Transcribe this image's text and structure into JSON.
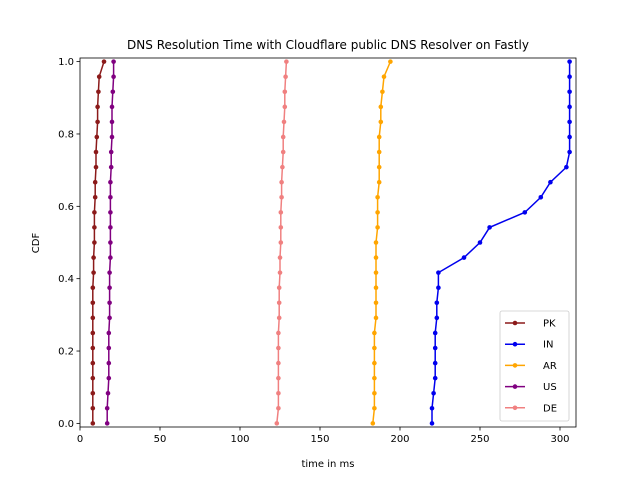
{
  "chart_data": {
    "type": "line",
    "title": "DNS Resolution Time with Cloudflare public DNS Resolver on Fastly",
    "xlabel": "time in ms",
    "ylabel": "CDF",
    "xlim": [
      0,
      310
    ],
    "ylim": [
      -0.01,
      1.01
    ],
    "xticks": [
      0,
      50,
      100,
      150,
      200,
      250,
      300
    ],
    "yticks": [
      0.0,
      0.2,
      0.4,
      0.6,
      0.8,
      1.0
    ],
    "grid": false,
    "legend_position": "bottom-right",
    "y": [
      0.0,
      0.0417,
      0.0833,
      0.125,
      0.1667,
      0.2083,
      0.25,
      0.2917,
      0.3333,
      0.375,
      0.4167,
      0.4583,
      0.5,
      0.5417,
      0.5833,
      0.625,
      0.6667,
      0.7083,
      0.75,
      0.7917,
      0.8333,
      0.875,
      0.9167,
      0.9583,
      1.0
    ],
    "series": [
      {
        "name": "PK",
        "color": "#8b1a1a",
        "x": [
          8,
          8,
          8,
          8,
          8,
          8,
          8,
          8,
          8,
          8,
          8.5,
          8.5,
          9,
          9,
          9,
          9.5,
          9.5,
          10,
          10,
          10.5,
          11,
          11,
          11.5,
          12,
          15
        ]
      },
      {
        "name": "IN",
        "color": "#0000ee",
        "x": [
          220,
          220,
          221,
          222,
          222,
          222,
          222,
          223,
          223,
          224,
          224,
          240,
          250,
          256,
          278,
          288,
          294,
          304,
          306,
          306,
          306,
          306,
          306,
          306,
          306
        ]
      },
      {
        "name": "AR",
        "color": "#ffa500",
        "x": [
          183,
          184,
          184,
          184,
          184,
          184,
          184,
          185,
          185,
          185,
          185,
          185,
          185,
          186,
          186,
          186,
          187,
          187,
          187,
          187,
          188,
          188,
          189,
          190,
          194
        ]
      },
      {
        "name": "US",
        "color": "#800080",
        "x": [
          17,
          17,
          17.5,
          18,
          18,
          18,
          18,
          18.5,
          18.5,
          18.5,
          18.5,
          19,
          19,
          19,
          19,
          19,
          19,
          19.5,
          19.5,
          20,
          20,
          20,
          20.5,
          21,
          21
        ]
      },
      {
        "name": "DE",
        "color": "#f08080",
        "x": [
          123,
          124,
          124,
          124,
          124,
          124,
          124,
          124.5,
          124.5,
          124.5,
          125,
          125,
          125.5,
          125.5,
          125.5,
          126,
          126,
          126.5,
          127,
          127,
          127.5,
          128,
          128,
          128.5,
          129
        ]
      }
    ]
  }
}
